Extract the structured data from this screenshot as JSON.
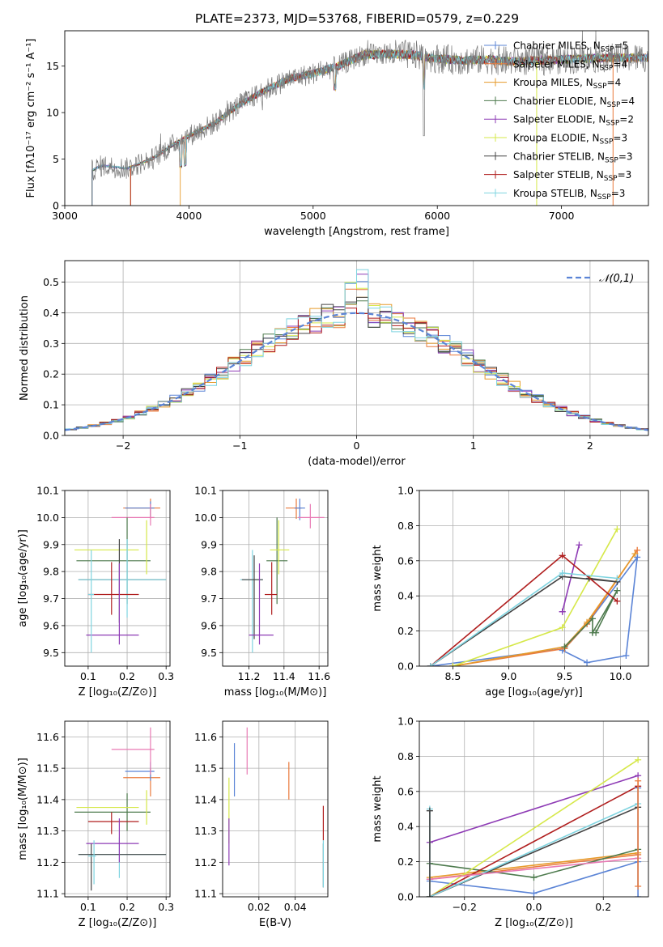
{
  "title": "PLATE=2373, MJD=53768, FIBERID=0579, z=0.229",
  "colors": {
    "chabrier_miles": "#5b84d6",
    "salpeter_miles": "#ea7a3c",
    "kroupa_miles": "#e69a2a",
    "chabrier_elodie": "#4d7a4d",
    "salpeter_elodie": "#8e3bb5",
    "kroupa_elodie": "#d6e84a",
    "chabrier_stelib": "#444444",
    "salpeter_stelib": "#b01e1e",
    "kroupa_stelib": "#7fd4e0",
    "pink": "#e87ab4",
    "gaussian": "#5b84d6"
  },
  "chart_data": [
    {
      "type": "line",
      "id": "spectrum",
      "xlabel": "wavelength [Angstrom, rest frame]",
      "ylabel": "Flux [fλ10⁻¹⁷ erg cm⁻² s⁻¹ A⁻¹]",
      "xlim": [
        3000,
        7700
      ],
      "ylim": [
        0,
        18.8
      ],
      "xticks": [
        "3000",
        "4000",
        "5000",
        "6000",
        "7000"
      ],
      "yticks": [
        "0",
        "5",
        "10",
        "15"
      ],
      "legend_position": "right",
      "legend": [
        "Chabrier MILES, N_SSP=5",
        "Salpeter MILES, N_SSP=4",
        "Kroupa MILES, N_SSP=4",
        "Chabrier ELODIE, N_SSP=4",
        "Salpeter ELODIE, N_SSP=2",
        "Kroupa ELODIE, N_SSP=3",
        "Chabrier STELIB, N_SSP=3",
        "Salpeter STELIB, N_SSP=3",
        "Kroupa STELIB, N_SSP=3"
      ],
      "continuum": {
        "x": [
          3220,
          3300,
          3500,
          3700,
          3900,
          4000,
          4200,
          4400,
          4600,
          4800,
          5000,
          5200,
          5400,
          5600,
          5800,
          6000,
          6200,
          6400,
          6600,
          6800,
          7000,
          7200,
          7400
        ],
        "y": [
          3.8,
          4.3,
          4.0,
          5.0,
          6.8,
          7.5,
          8.8,
          10.8,
          12.3,
          13.6,
          14.2,
          15.0,
          16.2,
          16.3,
          16.2,
          15.8,
          15.6,
          15.7,
          15.5,
          15.6,
          15.7,
          15.8,
          15.9
        ]
      },
      "model_start_x": [
        3220,
        3530,
        3930
      ]
    },
    {
      "type": "histogram",
      "id": "residuals",
      "xlabel": "(data-model)/error",
      "ylabel": "Normed distribution",
      "xlim": [
        -2.5,
        2.5
      ],
      "ylim": [
        0,
        0.57
      ],
      "xticks": [
        "−2",
        "−1",
        "0",
        "1",
        "2"
      ],
      "yticks": [
        "0.0",
        "0.1",
        "0.2",
        "0.3",
        "0.4",
        "0.5"
      ],
      "legend": [
        "𝒩(0,1)"
      ],
      "bin_width": 0.1,
      "peak_values": [
        0.55,
        0.5,
        0.46,
        0.44
      ]
    },
    {
      "type": "scatter",
      "id": "age-vs-Z",
      "xlabel": "Z [log₁₀(Z/Z⊙)]",
      "ylabel": "age  [log₁₀(age/yr)]",
      "xlim": [
        0.04,
        0.31
      ],
      "ylim": [
        9.45,
        10.1
      ],
      "xticks": [
        "0.1",
        "0.2",
        "0.3"
      ],
      "yticks": [
        "9.5",
        "9.6",
        "9.7",
        "9.8",
        "9.9",
        "10.0",
        "10.1"
      ],
      "points": [
        {
          "x": 0.26,
          "y": 10.035,
          "xerr": [
            0.19,
            0.285
          ],
          "yerr": [
            9.995,
            10.07
          ],
          "c": "salpeter_miles"
        },
        {
          "x": 0.26,
          "y": 10.035,
          "xerr": [
            0.195,
            0.27
          ],
          "yerr": [
            10.0,
            10.06
          ],
          "c": "chabrier_miles"
        },
        {
          "x": 0.26,
          "y": 10.0,
          "xerr": [
            0.16,
            0.27
          ],
          "yerr": [
            9.97,
            10.05
          ],
          "c": "pink"
        },
        {
          "x": 0.2,
          "y": 9.84,
          "xerr": [
            0.07,
            0.26
          ],
          "yerr": [
            9.68,
            10.0
          ],
          "c": "chabrier_elodie"
        },
        {
          "x": 0.25,
          "y": 9.88,
          "xerr": [
            0.065,
            0.23
          ],
          "yerr": [
            9.79,
            9.99
          ],
          "c": "kroupa_elodie"
        },
        {
          "x": 0.18,
          "y": 9.77,
          "xerr": [
            0.075,
            0.3
          ],
          "yerr": [
            9.61,
            9.92
          ],
          "c": "chabrier_stelib"
        },
        {
          "x": 0.2,
          "y": 9.77,
          "xerr": [
            0.075,
            0.3
          ],
          "yerr": [
            9.63,
            9.92
          ],
          "c": "kroupa_stelib"
        },
        {
          "x": 0.16,
          "y": 9.715,
          "xerr": [
            0.1,
            0.23
          ],
          "yerr": [
            9.64,
            9.835
          ],
          "c": "salpeter_stelib"
        },
        {
          "x": 0.18,
          "y": 9.565,
          "xerr": [
            0.095,
            0.23
          ],
          "yerr": [
            9.53,
            9.83
          ],
          "c": "salpeter_elodie"
        },
        {
          "x": 0.108,
          "y": 9.715,
          "xerr": [
            0.1,
            0.115
          ],
          "yerr": [
            9.5,
            9.88
          ],
          "c": "kroupa_stelib"
        }
      ]
    },
    {
      "type": "scatter",
      "id": "age-vs-mass",
      "xlabel": "mass [log₁₀(M/M⊙)]",
      "ylabel": "",
      "xlim": [
        11.05,
        11.65
      ],
      "ylim": [
        9.45,
        10.1
      ],
      "xticks": [
        "11.2",
        "11.4",
        "11.6"
      ],
      "yticks": [
        "9.5",
        "9.6",
        "9.7",
        "9.8",
        "9.9",
        "10.0",
        "10.1"
      ],
      "points": [
        {
          "x": 11.47,
          "y": 10.035,
          "xerr": [
            11.41,
            11.5
          ],
          "yerr": [
            9.995,
            10.07
          ],
          "c": "salpeter_miles"
        },
        {
          "x": 11.49,
          "y": 10.035,
          "xerr": [
            11.46,
            11.52
          ],
          "yerr": [
            9.99,
            10.07
          ],
          "c": "chabrier_miles"
        },
        {
          "x": 11.55,
          "y": 10.0,
          "xerr": [
            11.48,
            11.63
          ],
          "yerr": [
            9.96,
            10.05
          ],
          "c": "pink"
        },
        {
          "x": 11.36,
          "y": 9.84,
          "xerr": [
            11.3,
            11.42
          ],
          "yerr": [
            9.68,
            10.0
          ],
          "c": "chabrier_elodie"
        },
        {
          "x": 11.37,
          "y": 9.88,
          "xerr": [
            11.32,
            11.43
          ],
          "yerr": [
            9.79,
            9.99
          ],
          "c": "kroupa_elodie"
        },
        {
          "x": 11.22,
          "y": 9.77,
          "xerr": [
            11.15,
            11.28
          ],
          "yerr": [
            9.5,
            9.88
          ],
          "c": "kroupa_stelib"
        },
        {
          "x": 11.23,
          "y": 9.77,
          "xerr": [
            11.16,
            11.28
          ],
          "yerr": [
            9.55,
            9.86
          ],
          "c": "chabrier_stelib"
        },
        {
          "x": 11.33,
          "y": 9.715,
          "xerr": [
            11.29,
            11.36
          ],
          "yerr": [
            9.64,
            9.835
          ],
          "c": "salpeter_stelib"
        },
        {
          "x": 11.26,
          "y": 9.565,
          "xerr": [
            11.2,
            11.34
          ],
          "yerr": [
            9.53,
            9.83
          ],
          "c": "salpeter_elodie"
        }
      ]
    },
    {
      "type": "line",
      "id": "mass-weight-vs-age",
      "xlabel": "age  [log₁₀(age/yr)]",
      "ylabel": "mass weight",
      "xlim": [
        8.2,
        10.25
      ],
      "ylim": [
        0,
        1.0
      ],
      "xticks": [
        "8.5",
        "9.0",
        "9.5",
        "10.0"
      ],
      "yticks": [
        "0.0",
        "0.2",
        "0.4",
        "0.6",
        "0.8",
        "1.0"
      ],
      "series": [
        {
          "c": "chabrier_miles",
          "x": [
            9.48,
            9.7,
            10.05,
            10.15,
            9.7,
            9.5,
            8.3
          ],
          "y": [
            0.09,
            0.02,
            0.06,
            0.62,
            0.24,
            0.1,
            0.0
          ]
        },
        {
          "c": "salpeter_miles",
          "x": [
            8.5,
            9.5,
            9.7,
            10.15
          ],
          "y": [
            0.0,
            0.1,
            0.24,
            0.66
          ]
        },
        {
          "c": "kroupa_miles",
          "x": [
            8.5,
            9.5,
            9.7,
            10.13
          ],
          "y": [
            0.0,
            0.11,
            0.25,
            0.64
          ]
        },
        {
          "c": "chabrier_elodie",
          "x": [
            9.5,
            9.75,
            9.75,
            9.97,
            9.78
          ],
          "y": [
            0.11,
            0.27,
            0.19,
            0.43,
            0.19
          ]
        },
        {
          "c": "salpeter_elodie",
          "x": [
            9.48,
            9.63,
            9.48
          ],
          "y": [
            0.31,
            0.69,
            0.31
          ]
        },
        {
          "c": "kroupa_elodie",
          "x": [
            8.5,
            9.48,
            9.97
          ],
          "y": [
            0.0,
            0.22,
            0.78
          ]
        },
        {
          "c": "chabrier_stelib",
          "x": [
            8.3,
            9.48,
            9.97,
            9.72
          ],
          "y": [
            0.0,
            0.51,
            0.48,
            0.5
          ]
        },
        {
          "c": "salpeter_stelib",
          "x": [
            8.3,
            9.48,
            9.97
          ],
          "y": [
            0.0,
            0.63,
            0.37
          ]
        },
        {
          "c": "kroupa_stelib",
          "x": [
            8.3,
            9.48,
            9.97
          ],
          "y": [
            0.0,
            0.53,
            0.5
          ]
        }
      ]
    },
    {
      "type": "scatter",
      "id": "mass-vs-Z",
      "xlabel": "Z [log₁₀(Z/Z⊙)]",
      "ylabel": "mass [log₁₀(M/M⊙)]",
      "xlim": [
        0.04,
        0.31
      ],
      "ylim": [
        11.09,
        11.65
      ],
      "xticks": [
        "0.1",
        "0.2",
        "0.3"
      ],
      "yticks": [
        "11.1",
        "11.2",
        "11.3",
        "11.4",
        "11.5",
        "11.6"
      ],
      "points": [
        {
          "x": 0.26,
          "y": 11.47,
          "xerr": [
            0.19,
            0.285
          ],
          "yerr": [
            11.41,
            11.5
          ],
          "c": "salpeter_miles"
        },
        {
          "x": 0.26,
          "y": 11.49,
          "xerr": [
            0.195,
            0.27
          ],
          "yerr": [
            11.46,
            11.52
          ],
          "c": "chabrier_miles"
        },
        {
          "x": 0.26,
          "y": 11.56,
          "xerr": [
            0.16,
            0.27
          ],
          "yerr": [
            11.48,
            11.63
          ],
          "c": "pink"
        },
        {
          "x": 0.2,
          "y": 11.36,
          "xerr": [
            0.065,
            0.26
          ],
          "yerr": [
            11.3,
            11.42
          ],
          "c": "chabrier_elodie"
        },
        {
          "x": 0.25,
          "y": 11.375,
          "xerr": [
            0.07,
            0.23
          ],
          "yerr": [
            11.32,
            11.43
          ],
          "c": "kroupa_elodie"
        },
        {
          "x": 0.18,
          "y": 11.225,
          "xerr": [
            0.075,
            0.3
          ],
          "yerr": [
            11.15,
            11.28
          ],
          "c": "kroupa_stelib"
        },
        {
          "x": 0.108,
          "y": 11.225,
          "xerr": [
            0.075,
            0.3
          ],
          "yerr": [
            11.11,
            11.26
          ],
          "c": "chabrier_stelib"
        },
        {
          "x": 0.16,
          "y": 11.33,
          "xerr": [
            0.1,
            0.23
          ],
          "yerr": [
            11.29,
            11.36
          ],
          "c": "salpeter_stelib"
        },
        {
          "x": 0.18,
          "y": 11.26,
          "xerr": [
            0.095,
            0.23
          ],
          "yerr": [
            11.2,
            11.34
          ],
          "c": "salpeter_elodie"
        },
        {
          "x": 0.115,
          "y": 11.22,
          "xerr": [
            0.1,
            0.12
          ],
          "yerr": [
            11.13,
            11.27
          ],
          "c": "kroupa_stelib"
        }
      ]
    },
    {
      "type": "scatter",
      "id": "mass-vs-EBV",
      "xlabel": "E(B-V)",
      "ylabel": "",
      "xlim": [
        0.0,
        0.058
      ],
      "ylim": [
        11.09,
        11.65
      ],
      "xticks": [
        "0.02",
        "0.04"
      ],
      "yticks": [
        "11.1",
        "11.2",
        "11.3",
        "11.4",
        "11.5",
        "11.6"
      ],
      "points": [
        {
          "x": 0.0065,
          "y": 11.49,
          "yerr": [
            11.41,
            11.58
          ],
          "c": "chabrier_miles"
        },
        {
          "x": 0.0135,
          "y": 11.56,
          "yerr": [
            11.48,
            11.63
          ],
          "c": "pink"
        },
        {
          "x": 0.0365,
          "y": 11.47,
          "yerr": [
            11.4,
            11.52
          ],
          "c": "salpeter_miles"
        },
        {
          "x": 0.0035,
          "y": 11.375,
          "yerr": [
            11.26,
            11.47
          ],
          "c": "kroupa_elodie"
        },
        {
          "x": 0.0035,
          "y": 11.26,
          "yerr": [
            11.19,
            11.34
          ],
          "c": "salpeter_elodie"
        },
        {
          "x": 0.0555,
          "y": 11.33,
          "yerr": [
            11.27,
            11.38
          ],
          "c": "salpeter_stelib"
        },
        {
          "x": 0.0555,
          "y": 11.225,
          "yerr": [
            11.12,
            11.26
          ],
          "c": "chabrier_stelib"
        },
        {
          "x": 0.0555,
          "y": 11.19,
          "yerr": [
            11.12,
            11.27
          ],
          "c": "kroupa_stelib"
        }
      ]
    },
    {
      "type": "line",
      "id": "mass-weight-vs-Z",
      "xlabel": "Z [log₁₀(Z/Z⊙)]",
      "ylabel": "mass weight",
      "xlim": [
        -0.33,
        0.33
      ],
      "ylim": [
        0,
        1.0
      ],
      "xticks": [
        "−0.2",
        "0.0",
        "0.2"
      ],
      "yticks": [
        "0.0",
        "0.2",
        "0.4",
        "0.6",
        "0.8",
        "1.0"
      ],
      "series": [
        {
          "c": "chabrier_miles",
          "x": [
            -0.3,
            0.0,
            0.3
          ],
          "y": [
            0.09,
            0.02,
            0.2
          ]
        },
        {
          "c": "salpeter_miles",
          "x": [
            -0.3,
            0.3
          ],
          "y": [
            0.1,
            0.24
          ]
        },
        {
          "c": "kroupa_miles",
          "x": [
            -0.3,
            0.3
          ],
          "y": [
            0.11,
            0.25
          ]
        },
        {
          "c": "chabrier_elodie",
          "x": [
            -0.3,
            0.0,
            0.3
          ],
          "y": [
            0.19,
            0.11,
            0.27
          ]
        },
        {
          "c": "salpeter_elodie",
          "x": [
            -0.3,
            0.3
          ],
          "y": [
            0.31,
            0.69
          ]
        },
        {
          "c": "kroupa_elodie",
          "x": [
            -0.3,
            0.3
          ],
          "y": [
            0.0,
            0.78
          ]
        },
        {
          "c": "chabrier_stelib",
          "x": [
            -0.3,
            0.3
          ],
          "y": [
            0.0,
            0.51
          ]
        },
        {
          "c": "salpeter_stelib",
          "x": [
            -0.3,
            0.3
          ],
          "y": [
            0.0,
            0.63
          ]
        },
        {
          "c": "kroupa_stelib",
          "x": [
            -0.3,
            0.3
          ],
          "y": [
            0.0,
            0.53
          ]
        },
        {
          "c": "pink",
          "x": [
            -0.3,
            0.3
          ],
          "y": [
            0.1,
            0.22
          ]
        },
        {
          "c": "chabrier_miles",
          "x": [
            0.3,
            0.3
          ],
          "y": [
            0.0,
            0.62
          ]
        },
        {
          "c": "salpeter_miles",
          "x": [
            0.3,
            0.3
          ],
          "y": [
            0.06,
            0.66
          ]
        },
        {
          "c": "kroupa_stelib",
          "x": [
            -0.3,
            -0.3
          ],
          "y": [
            0.0,
            0.5
          ]
        },
        {
          "c": "chabrier_stelib",
          "x": [
            -0.3,
            -0.3
          ],
          "y": [
            0.0,
            0.49
          ]
        }
      ]
    }
  ]
}
